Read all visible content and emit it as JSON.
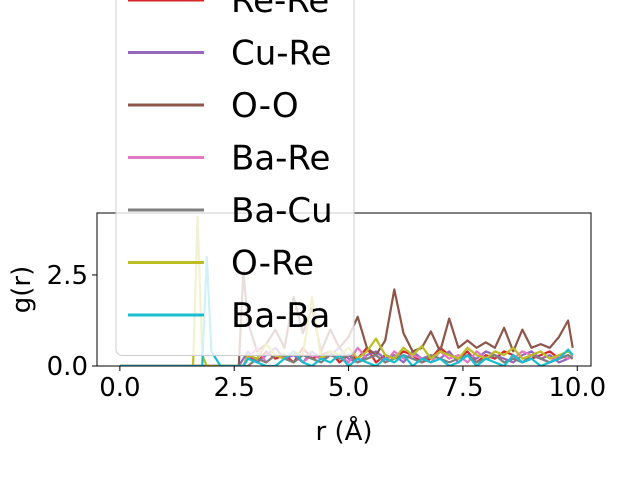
{
  "chart_data": {
    "type": "line",
    "xlabel": "r (Å)",
    "ylabel": "g(r)",
    "xlim": [
      -0.5,
      10.3
    ],
    "ylim": [
      0,
      4.2
    ],
    "xticks": [
      0.0,
      2.5,
      5.0,
      7.5,
      10.0
    ],
    "xtick_labels": [
      "0.0",
      "2.5",
      "5.0",
      "7.5",
      "10.0"
    ],
    "yticks": [
      0.0,
      2.5
    ],
    "ytick_labels": [
      "0.0",
      "2.5"
    ],
    "grid": false,
    "legend_placement": "upper-left, overflowing above the axes",
    "x": [
      0.0,
      0.2,
      0.4,
      0.6,
      0.8,
      1.0,
      1.2,
      1.4,
      1.6,
      1.7,
      1.8,
      1.9,
      2.0,
      2.2,
      2.4,
      2.6,
      2.7,
      2.8,
      3.0,
      3.2,
      3.4,
      3.6,
      3.8,
      4.0,
      4.2,
      4.4,
      4.6,
      4.8,
      5.0,
      5.2,
      5.4,
      5.6,
      5.8,
      6.0,
      6.2,
      6.4,
      6.6,
      6.8,
      7.0,
      7.2,
      7.4,
      7.6,
      7.8,
      8.0,
      8.2,
      8.4,
      8.6,
      8.8,
      9.0,
      9.2,
      9.4,
      9.6,
      9.8,
      9.9
    ],
    "series": [
      {
        "name": "Re-Re",
        "color": "#d62728",
        "values": [
          0,
          0,
          0,
          0,
          0,
          0,
          0,
          0,
          0,
          0,
          0,
          0,
          0,
          0,
          0,
          0,
          0,
          0.3,
          0.1,
          0.4,
          0.2,
          0.3,
          0.1,
          0.5,
          0.2,
          0.3,
          0.4,
          0.1,
          0.3,
          0.2,
          0.5,
          0.1,
          0.3,
          0.2,
          0.4,
          0.3,
          0.1,
          0.2,
          0.5,
          0.3,
          0.2,
          0.4,
          0.1,
          0.3,
          0.2,
          0.4,
          0.3,
          0.1,
          0.2,
          0.3,
          0.4,
          0.2,
          0.3,
          0.2
        ]
      },
      {
        "name": "Cu-Re",
        "color": "#9467bd",
        "values": [
          0,
          0,
          0,
          0,
          0,
          0,
          0,
          0,
          0,
          0,
          0,
          0,
          0,
          0,
          0,
          0,
          0.2,
          0.4,
          0.1,
          0.3,
          0.5,
          0.2,
          0.3,
          0.1,
          0.4,
          0.2,
          0.3,
          0.5,
          0.2,
          0.1,
          0.3,
          0.4,
          0.2,
          0.3,
          0.1,
          0.4,
          0.2,
          0.3,
          0.2,
          0.4,
          0.1,
          0.3,
          0.2,
          0.4,
          0.3,
          0.2,
          0.1,
          0.3,
          0.4,
          0.2,
          0.3,
          0.1,
          0.2,
          0.3
        ]
      },
      {
        "name": "O-O",
        "color": "#8c564b",
        "values": [
          0,
          0,
          0,
          0,
          0,
          0,
          0,
          0,
          0,
          0,
          0,
          0,
          0,
          0,
          0,
          0,
          2.6,
          1.2,
          0.4,
          0.6,
          1.0,
          0.5,
          1.9,
          0.9,
          1.6,
          0.4,
          1.0,
          0.5,
          0.8,
          1.35,
          0.5,
          0.3,
          0.7,
          2.1,
          0.9,
          0.4,
          0.5,
          0.95,
          0.4,
          1.3,
          0.5,
          0.7,
          0.5,
          0.65,
          0.5,
          1.05,
          0.4,
          1.0,
          0.5,
          0.6,
          0.5,
          0.8,
          1.25,
          0.5
        ]
      },
      {
        "name": "Ba-Re",
        "color": "#e377c2",
        "values": [
          0,
          0,
          0,
          0,
          0,
          0,
          0,
          0,
          0,
          0,
          0,
          0,
          0,
          0,
          0,
          0,
          0,
          0.2,
          0.5,
          0.1,
          0.3,
          0.2,
          0.4,
          0.1,
          0.3,
          0.2,
          0.4,
          0.3,
          0.1,
          0.5,
          0.2,
          0.3,
          0.1,
          0.4,
          0.2,
          0.3,
          0.2,
          0.1,
          0.4,
          0.2,
          0.3,
          0.1,
          0.4,
          0.2,
          0.3,
          0.1,
          0.2,
          0.4,
          0.3,
          0.2,
          0.1,
          0.3,
          0.2,
          0.3
        ]
      },
      {
        "name": "Ba-Cu",
        "color": "#7f7f7f",
        "values": [
          0,
          0,
          0,
          0,
          0,
          0,
          0,
          0,
          0,
          0,
          0,
          0,
          0,
          0,
          0,
          0,
          0,
          0,
          0.2,
          0.1,
          0.3,
          0.2,
          0.1,
          0.3,
          0.2,
          0.1,
          0.3,
          0.2,
          0.3,
          0.1,
          0.2,
          0.3,
          0.1,
          0.2,
          0.3,
          0.2,
          0.1,
          0.3,
          0.2,
          0.1,
          0.2,
          0.3,
          0.1,
          0.2,
          0.3,
          0.1,
          0.2,
          0.1,
          0.3,
          0.2,
          0.1,
          0.2,
          0.3,
          0.2
        ]
      },
      {
        "name": "O-Re",
        "color": "#bcbd22",
        "values": [
          0,
          0,
          0,
          0,
          0,
          0,
          0,
          0,
          0,
          4.1,
          0.3,
          0,
          0,
          0,
          0,
          0,
          0,
          0.3,
          0.2,
          0.6,
          0.3,
          0.2,
          0.4,
          0.3,
          1.9,
          0.2,
          0.4,
          0.3,
          0.5,
          0.2,
          0.4,
          0.75,
          0.3,
          0.2,
          0.5,
          0.3,
          0.55,
          0.2,
          0.4,
          0.3,
          0.2,
          0.5,
          0.3,
          0.2,
          0.4,
          0.3,
          0.5,
          0.2,
          0.3,
          0.4,
          0.2,
          0.3,
          0.4,
          0.3
        ]
      },
      {
        "name": "Ba-Ba",
        "color": "#17becf",
        "values": [
          0,
          0,
          0,
          0,
          0,
          0,
          0,
          0,
          0,
          0,
          0,
          3.0,
          0.4,
          0,
          0,
          0,
          0,
          0.2,
          0.1,
          0,
          0,
          0.2,
          0.4,
          0.1,
          0,
          0.2,
          0.1,
          0.3,
          0,
          0.2,
          0.1,
          0,
          0.2,
          0.1,
          0.3,
          0,
          0.2,
          0.1,
          0.2,
          0,
          0.1,
          0.3,
          0,
          0.2,
          0.1,
          0,
          0.3,
          0.1,
          0.2,
          0,
          0.1,
          0.2,
          0.45,
          0.3
        ]
      }
    ]
  }
}
